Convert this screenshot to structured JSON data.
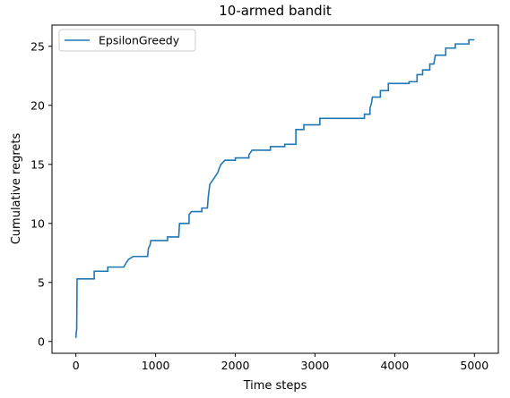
{
  "chart_data": {
    "type": "line",
    "title": "10-armed bandit",
    "xlabel": "Time steps",
    "ylabel": "Cumulative regrets",
    "xlim": [
      -300,
      5300
    ],
    "ylim": [
      -1.0,
      26.8
    ],
    "xticks": [
      0,
      1000,
      2000,
      3000,
      4000,
      5000
    ],
    "yticks": [
      0,
      5,
      10,
      15,
      20,
      25
    ],
    "grid": false,
    "legend_position": "upper-left",
    "series": [
      {
        "name": "EpsilonGreedy",
        "color": "#1f77b4",
        "step": true,
        "points": [
          [
            0,
            0.3
          ],
          [
            5,
            0.8
          ],
          [
            10,
            1.0
          ],
          [
            15,
            5.3
          ],
          [
            230,
            5.3
          ],
          [
            230,
            5.95
          ],
          [
            400,
            5.95
          ],
          [
            400,
            6.3
          ],
          [
            600,
            6.3
          ],
          [
            630,
            6.65
          ],
          [
            660,
            6.95
          ],
          [
            720,
            7.2
          ],
          [
            900,
            7.2
          ],
          [
            910,
            7.9
          ],
          [
            930,
            8.15
          ],
          [
            940,
            8.55
          ],
          [
            1150,
            8.55
          ],
          [
            1150,
            8.85
          ],
          [
            1290,
            8.85
          ],
          [
            1300,
            10.0
          ],
          [
            1420,
            10.0
          ],
          [
            1420,
            10.75
          ],
          [
            1450,
            11.0
          ],
          [
            1580,
            11.0
          ],
          [
            1580,
            11.3
          ],
          [
            1650,
            11.3
          ],
          [
            1660,
            12.2
          ],
          [
            1680,
            13.3
          ],
          [
            1720,
            13.7
          ],
          [
            1780,
            14.3
          ],
          [
            1800,
            14.7
          ],
          [
            1820,
            15.0
          ],
          [
            1870,
            15.35
          ],
          [
            2000,
            15.35
          ],
          [
            2000,
            15.55
          ],
          [
            2170,
            15.55
          ],
          [
            2170,
            15.8
          ],
          [
            2210,
            16.2
          ],
          [
            2440,
            16.2
          ],
          [
            2440,
            16.5
          ],
          [
            2620,
            16.5
          ],
          [
            2620,
            16.7
          ],
          [
            2760,
            16.7
          ],
          [
            2760,
            17.95
          ],
          [
            2860,
            17.95
          ],
          [
            2860,
            18.35
          ],
          [
            3060,
            18.35
          ],
          [
            3060,
            18.9
          ],
          [
            3620,
            18.9
          ],
          [
            3620,
            19.25
          ],
          [
            3690,
            19.25
          ],
          [
            3690,
            19.75
          ],
          [
            3710,
            20.25
          ],
          [
            3720,
            20.7
          ],
          [
            3820,
            20.7
          ],
          [
            3820,
            21.25
          ],
          [
            3920,
            21.25
          ],
          [
            3920,
            21.85
          ],
          [
            4180,
            21.85
          ],
          [
            4180,
            22.0
          ],
          [
            4280,
            22.0
          ],
          [
            4280,
            22.6
          ],
          [
            4350,
            22.6
          ],
          [
            4350,
            23.0
          ],
          [
            4440,
            23.0
          ],
          [
            4440,
            23.5
          ],
          [
            4490,
            23.5
          ],
          [
            4510,
            24.25
          ],
          [
            4640,
            24.25
          ],
          [
            4640,
            24.85
          ],
          [
            4760,
            24.85
          ],
          [
            4760,
            25.2
          ],
          [
            4930,
            25.2
          ],
          [
            4930,
            25.55
          ],
          [
            5000,
            25.55
          ]
        ]
      }
    ]
  }
}
